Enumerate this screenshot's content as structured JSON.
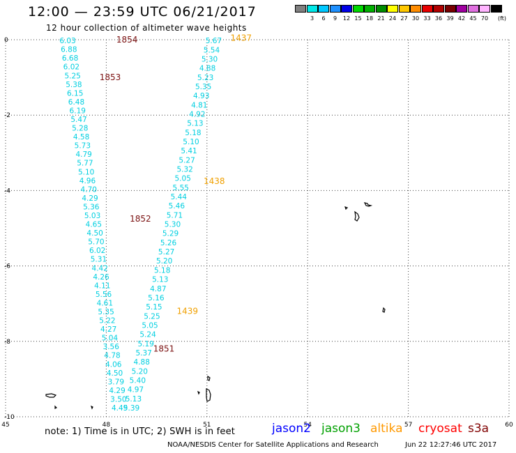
{
  "header": {
    "title": "12:00 — 23:59 UTC 06/21/2017",
    "subtitle": "12 hour collection of altimeter wave heights"
  },
  "color_scale": {
    "unit": "(ft)",
    "bins": [
      {
        "color": "#808080",
        "label": ""
      },
      {
        "color": "#00e8e8",
        "label": "3"
      },
      {
        "color": "#00c8ff",
        "label": "6"
      },
      {
        "color": "#1e90ff",
        "label": "9"
      },
      {
        "color": "#0000e8",
        "label": "12"
      },
      {
        "color": "#00d800",
        "label": "15"
      },
      {
        "color": "#00b000",
        "label": "18"
      },
      {
        "color": "#008c00",
        "label": "21"
      },
      {
        "color": "#ffff00",
        "label": "24"
      },
      {
        "color": "#ffc800",
        "label": "27"
      },
      {
        "color": "#ff8c00",
        "label": "30"
      },
      {
        "color": "#e80000",
        "label": "33"
      },
      {
        "color": "#b00000",
        "label": "36"
      },
      {
        "color": "#780000",
        "label": "39"
      },
      {
        "color": "#a000a0",
        "label": "42"
      },
      {
        "color": "#e070e0",
        "label": "45"
      },
      {
        "color": "#ffb4ff",
        "label": "70"
      },
      {
        "color": "#000000",
        "label": ""
      }
    ]
  },
  "map": {
    "lon_range": [
      45,
      60
    ],
    "lat_range": [
      -10,
      0
    ],
    "x_ticks": [
      "45",
      "48",
      "51",
      "54",
      "57",
      "60"
    ],
    "y_ticks": [
      "0",
      "-2",
      "-4",
      "-6",
      "-8",
      "-10"
    ],
    "colors": {
      "swh": "#00cfe0",
      "altika_time": "#f0a000",
      "cryosat_time": "#7a1010",
      "grid": "#404040"
    },
    "tracks": [
      {
        "name": "track-a",
        "values": [
          "6.03",
          "6.88",
          "6.68",
          "6.02",
          "5.25",
          "5.38",
          "6.15",
          "6.48",
          "6.19",
          "5.47",
          "5.28",
          "4.58",
          "5.73",
          "4.79",
          "5.77",
          "5.10",
          "4.96",
          "4.70",
          "4.29",
          "5.36",
          "5.03",
          "4.65",
          "4.50",
          "5.70",
          "6.02",
          "5.31",
          "4.42",
          "4.26",
          "4.11",
          "5.56",
          "4.61",
          "5.35",
          "5.22",
          "4.27",
          "5.04",
          "3.56",
          "4.78",
          "4.06",
          "4.50",
          "3.79",
          "4.29",
          "3.50",
          "4.49"
        ],
        "lat_start": -0.02,
        "lat_end": -9.76,
        "lon_start": 46.85,
        "lon_end": 48.4,
        "curve": 0
      },
      {
        "name": "track-b",
        "values": [
          "5.67",
          "5.54",
          "5.30",
          "4.88",
          "5.23",
          "5.35",
          "4.93",
          "4.81",
          "4.92",
          "5.13",
          "5.18",
          "5.10",
          "5.41",
          "5.27",
          "5.32",
          "5.05",
          "5.55",
          "5.44",
          "5.46",
          "5.71",
          "5.30",
          "5.29",
          "5.26",
          "5.27",
          "5.20",
          "5.18",
          "5.13",
          "4.87",
          "5.16",
          "5.15",
          "5.25",
          "5.05",
          "5.24",
          "5.19",
          "5.37",
          "4.88",
          "5.20",
          "5.40",
          "4.97",
          "5.13",
          "5.39"
        ],
        "lat_start": -0.02,
        "lat_end": -9.76,
        "lon_start": 51.2,
        "lon_end": 48.75,
        "curve": 0
      }
    ],
    "time_labels": [
      {
        "text": "1854",
        "lon": 48.3,
        "lat": 0.0,
        "sat": "cryosat"
      },
      {
        "text": "1853",
        "lon": 47.8,
        "lat": -1.0,
        "sat": "cryosat"
      },
      {
        "text": "1852",
        "lon": 48.7,
        "lat": -4.75,
        "sat": "cryosat"
      },
      {
        "text": "1851",
        "lon": 49.4,
        "lat": -8.2,
        "sat": "cryosat"
      },
      {
        "text": "1437",
        "lon": 51.7,
        "lat": 0.05,
        "sat": "altika"
      },
      {
        "text": "1438",
        "lon": 50.9,
        "lat": -3.75,
        "sat": "altika"
      },
      {
        "text": "1439",
        "lon": 50.1,
        "lat": -7.2,
        "sat": "altika"
      }
    ]
  },
  "note": "note: 1) Time is in UTC; 2) SWH is in feet",
  "legend": [
    {
      "label": "jason2",
      "color": "#0000ff"
    },
    {
      "label": "jason3",
      "color": "#00a000"
    },
    {
      "label": "altika",
      "color": "#ff9900"
    },
    {
      "label": "cryosat",
      "color": "#ff0000"
    },
    {
      "label": "s3a",
      "color": "#800000"
    }
  ],
  "footer": {
    "credit": "NOAA/NESDIS Center for Satellite Applications and Research",
    "timestamp": "Jun 22 12:27:46 UTC 2017"
  }
}
